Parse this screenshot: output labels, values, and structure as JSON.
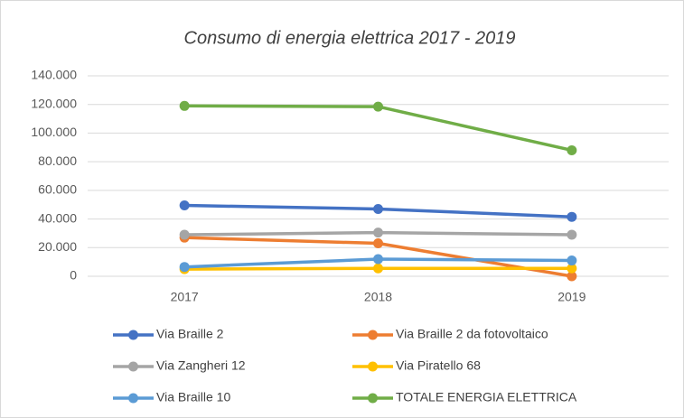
{
  "chart_data": {
    "type": "line",
    "title": "Consumo di energia elettrica 2017 - 2019",
    "categories": [
      "2017",
      "2018",
      "2019"
    ],
    "series": [
      {
        "name": "Via Braille 2",
        "color": "#4472c4",
        "values": [
          49500,
          47000,
          41500
        ]
      },
      {
        "name": "Via Braille 2 da fotovoltaico",
        "color": "#ed7d31",
        "values": [
          27000,
          23000,
          0
        ]
      },
      {
        "name": "Via Zangheri 12",
        "color": "#a5a5a5",
        "values": [
          29000,
          30500,
          29000
        ]
      },
      {
        "name": "Via Piratello 68",
        "color": "#ffc000",
        "values": [
          5000,
          5500,
          5500
        ]
      },
      {
        "name": "Via Braille 10",
        "color": "#5b9bd5",
        "values": [
          6500,
          12000,
          11000
        ]
      },
      {
        "name": "TOTALE ENERGIA ELETTRICA",
        "color": "#70ad47",
        "values": [
          119000,
          118500,
          88000
        ]
      }
    ],
    "ylim": [
      0,
      140000
    ],
    "yticks": [
      0,
      {
        "value": 20000,
        "label": "20.000"
      },
      {
        "value": 40000,
        "label": "40.000"
      },
      {
        "value": 60000,
        "label": "60.000"
      },
      {
        "value": 80000,
        "label": "80.000"
      },
      {
        "value": 100000,
        "label": "100.000"
      },
      {
        "value": 120000,
        "label": "120.000"
      },
      {
        "value": 140000,
        "label": "140.000"
      }
    ],
    "grid": true,
    "legend": "bottom"
  }
}
